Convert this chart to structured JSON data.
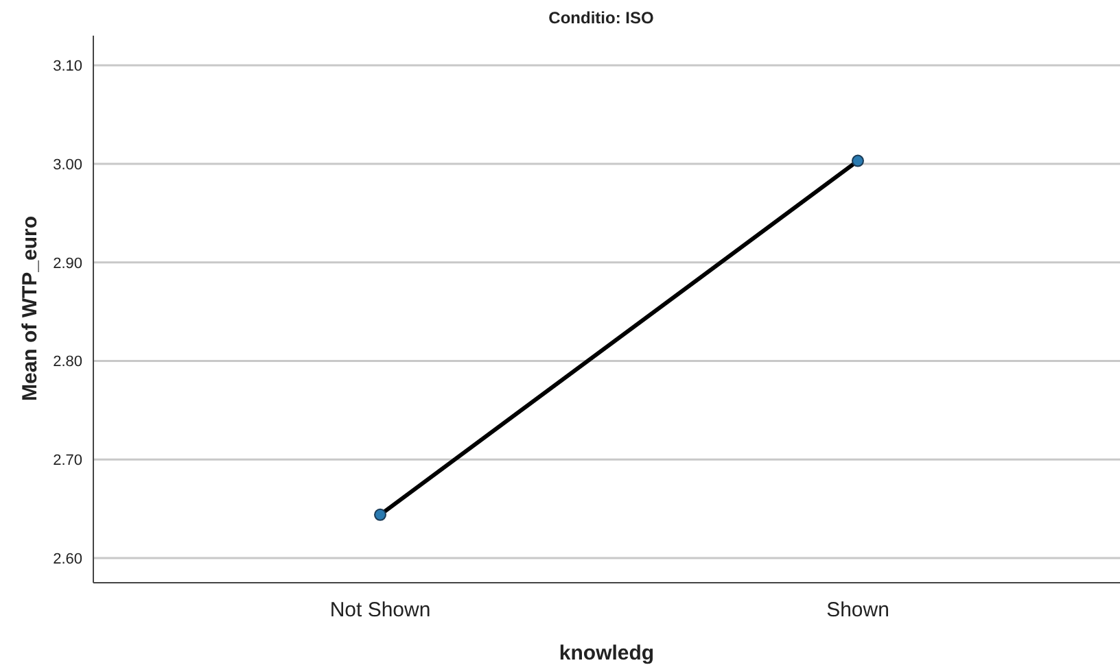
{
  "chart_data": {
    "type": "line",
    "title": "Conditio: ISO",
    "xlabel": "knowledg",
    "ylabel": "Mean of WTP_euro",
    "categories": [
      "Not Shown",
      "Shown"
    ],
    "series": [
      {
        "color": "#000000",
        "values": [
          2.644,
          3.003
        ]
      }
    ],
    "ylim": [
      2.575,
      3.13
    ],
    "yticks": [
      {
        "value": 2.6,
        "label": "2.60"
      },
      {
        "value": 2.7,
        "label": "2.70"
      },
      {
        "value": 2.8,
        "label": "2.80"
      },
      {
        "value": 2.9,
        "label": "2.90"
      },
      {
        "value": 3.0,
        "label": "3.00"
      },
      {
        "value": 3.1,
        "label": "3.10"
      }
    ],
    "grid": "y",
    "marker": "circle",
    "line_style": "solid",
    "legend": false
  }
}
